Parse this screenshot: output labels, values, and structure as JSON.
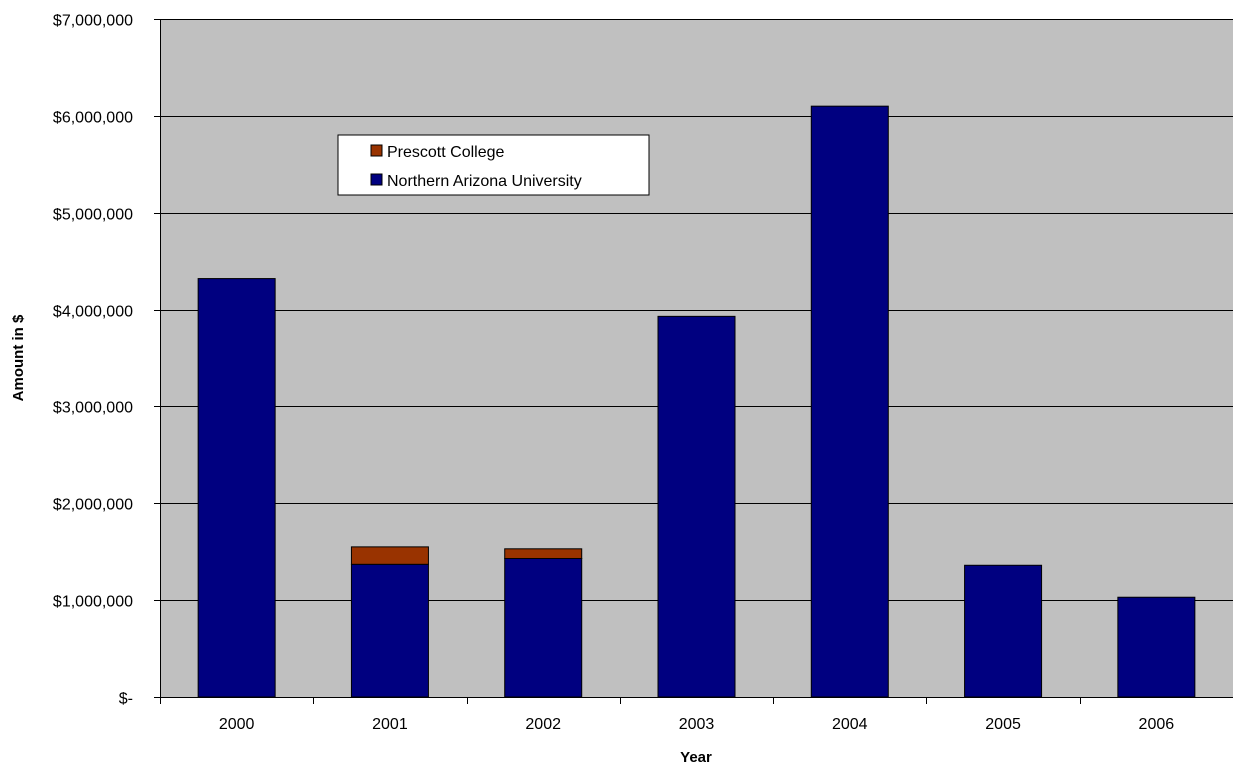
{
  "chart_data": {
    "type": "bar",
    "stacked": true,
    "title": "",
    "xlabel": "Year",
    "ylabel": "Amount in $",
    "categories": [
      "2000",
      "2001",
      "2002",
      "2003",
      "2004",
      "2005",
      "2006"
    ],
    "series": [
      {
        "name": "Northern Arizona University",
        "color": "#000080",
        "values": [
          4320000,
          1370000,
          1430000,
          3930000,
          6100000,
          1360000,
          1030000
        ]
      },
      {
        "name": "Prescott College",
        "color": "#993300",
        "values": [
          0,
          180000,
          100000,
          0,
          0,
          0,
          0
        ]
      }
    ],
    "ylim": [
      0,
      7000000
    ],
    "yticks": [
      0,
      1000000,
      2000000,
      3000000,
      4000000,
      5000000,
      6000000,
      7000000
    ],
    "ytick_labels": [
      "$-",
      "$1,000,000",
      "$2,000,000",
      "$3,000,000",
      "$4,000,000",
      "$5,000,000",
      "$6,000,000",
      "$7,000,000"
    ],
    "grid": true,
    "plot_background": "#c0c0c0",
    "legend_position": "upper-left inside plot",
    "legend_order": [
      "Prescott College",
      "Northern Arizona University"
    ]
  }
}
